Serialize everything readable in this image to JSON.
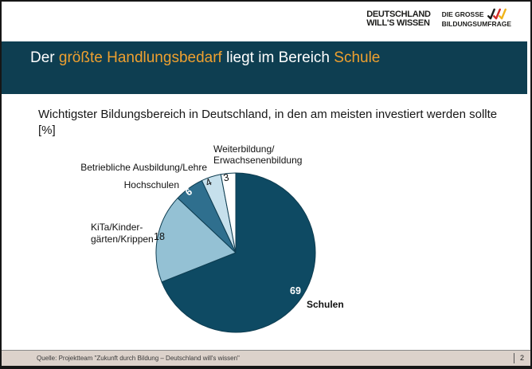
{
  "header": {
    "brand": {
      "line1": "DEUTSCHLAND",
      "line2": "WILL'S WISSEN"
    },
    "survey": {
      "line1": "DIE GROSSE",
      "line2": "BILDUNGSUMFRAGE"
    },
    "slash_colors": [
      "#1d1d1b",
      "#cf2a27",
      "#f0b41c"
    ]
  },
  "title_bar": {
    "bg_color": "#0e3e51",
    "text_color": "#ffffff",
    "highlight_color": "#efa02f",
    "parts": [
      {
        "text": "Der "
      },
      {
        "text": "größte Handlungsbedarf"
      },
      {
        "text": " liegt im Bereich "
      },
      {
        "text": "Schule"
      }
    ]
  },
  "subtitle": {
    "line1": "Wichtigster Bildungsbereich in Deutschland, in den am meisten investiert werden sollte",
    "line2": "[%]"
  },
  "chart_data": {
    "type": "pie",
    "title": "Wichtigster Bildungsbereich in Deutschland, in den am meisten investiert werden sollte [%]",
    "unit": "%",
    "start_angle": "12 o'clock",
    "direction": "clockwise",
    "stroke_color": "#0d3c50",
    "segments": [
      {
        "label": "Schulen",
        "value": 69,
        "color": "#0e4a63",
        "value_label_color": "#ffffff"
      },
      {
        "label": "KiTa/Kindergärten/Krippen",
        "label_lines": [
          "KiTa/Kinder-",
          "gärten/Krippen"
        ],
        "value": 18,
        "color": "#94c1d4",
        "value_label_color": "#000000"
      },
      {
        "label": "Hochschulen",
        "value": 6,
        "color": "#2f6f8e",
        "value_label_color": "#ffffff"
      },
      {
        "label": "Betriebliche Ausbildung/Lehre",
        "value": 4,
        "color": "#c6e0ec",
        "value_label_color": "#000000"
      },
      {
        "label": "Weiterbildung/Erwachsenenbildung",
        "label_lines": [
          "Weiterbildung/",
          "Erwachsenenbildung"
        ],
        "value": 3,
        "color": "#ffffff",
        "value_label_color": "#000000"
      }
    ]
  },
  "footer": {
    "source": "Quelle: Projektteam \"Zukunft durch Bildung – Deutschland will's wissen\"",
    "page": "2"
  }
}
